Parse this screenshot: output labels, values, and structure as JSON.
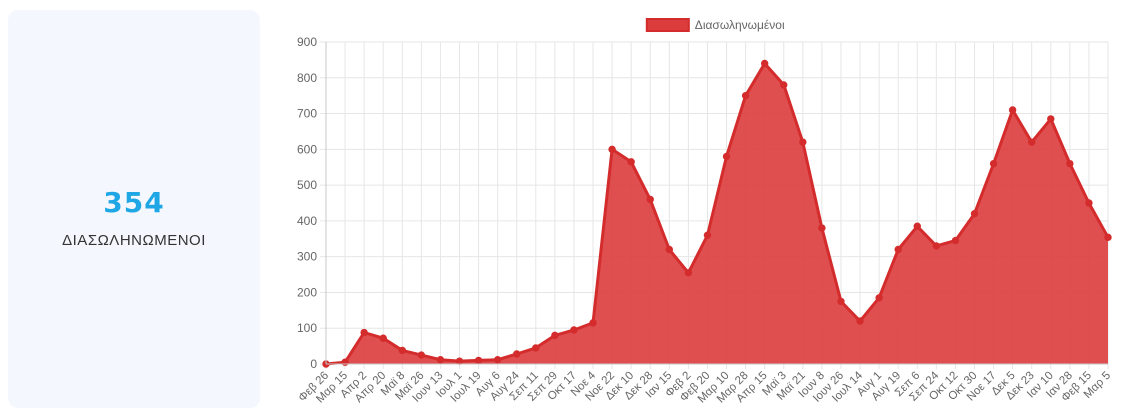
{
  "stat": {
    "value": "354",
    "label": "ΔΙΑΣΩΛΗΝΩΜΕΝΟΙ"
  },
  "chart_data": {
    "type": "area",
    "legend_position": "top",
    "grid": true,
    "colors": {
      "fill": "#dc3c3c",
      "line": "#d42c2c",
      "grid": "#e6e6e6"
    },
    "series": [
      {
        "name": "Διασωληνωμένοι",
        "x": [
          "Φεβ 26",
          "Μαρ 15",
          "Απρ 2",
          "Απρ 20",
          "Μαϊ 8",
          "Μαϊ 26",
          "Ιουν 13",
          "Ιουλ 1",
          "Ιουλ 19",
          "Αυγ 6",
          "Αυγ 24",
          "Σεπ 11",
          "Σεπ 29",
          "Οκτ 17",
          "Νοε 4",
          "Νοε 22",
          "Δεκ 10",
          "Δεκ 28",
          "Ιαν 15",
          "Φεβ 2",
          "Φεβ 20",
          "Μαρ 10",
          "Μαρ 28",
          "Απρ 15",
          "Μαϊ 3",
          "Μαϊ 21",
          "Ιουν 8",
          "Ιουν 26",
          "Ιουλ 14",
          "Αυγ 1",
          "Αυγ 19",
          "Σεπ 6",
          "Σεπ 24",
          "Οκτ 12",
          "Οκτ 30",
          "Νοε 17",
          "Δεκ 5",
          "Δεκ 23",
          "Ιαν 10",
          "Ιαν 28",
          "Φεβ 15",
          "Μαρ 5"
        ],
        "values": [
          0,
          5,
          88,
          72,
          38,
          25,
          12,
          8,
          10,
          12,
          28,
          45,
          80,
          95,
          115,
          600,
          565,
          460,
          320,
          255,
          360,
          580,
          750,
          840,
          780,
          620,
          380,
          175,
          120,
          185,
          320,
          385,
          330,
          345,
          420,
          560,
          710,
          620,
          685,
          560,
          450,
          354
        ]
      }
    ],
    "ylim": [
      0,
      900
    ],
    "yticks": [
      0,
      100,
      200,
      300,
      400,
      500,
      600,
      700,
      800,
      900
    ]
  }
}
